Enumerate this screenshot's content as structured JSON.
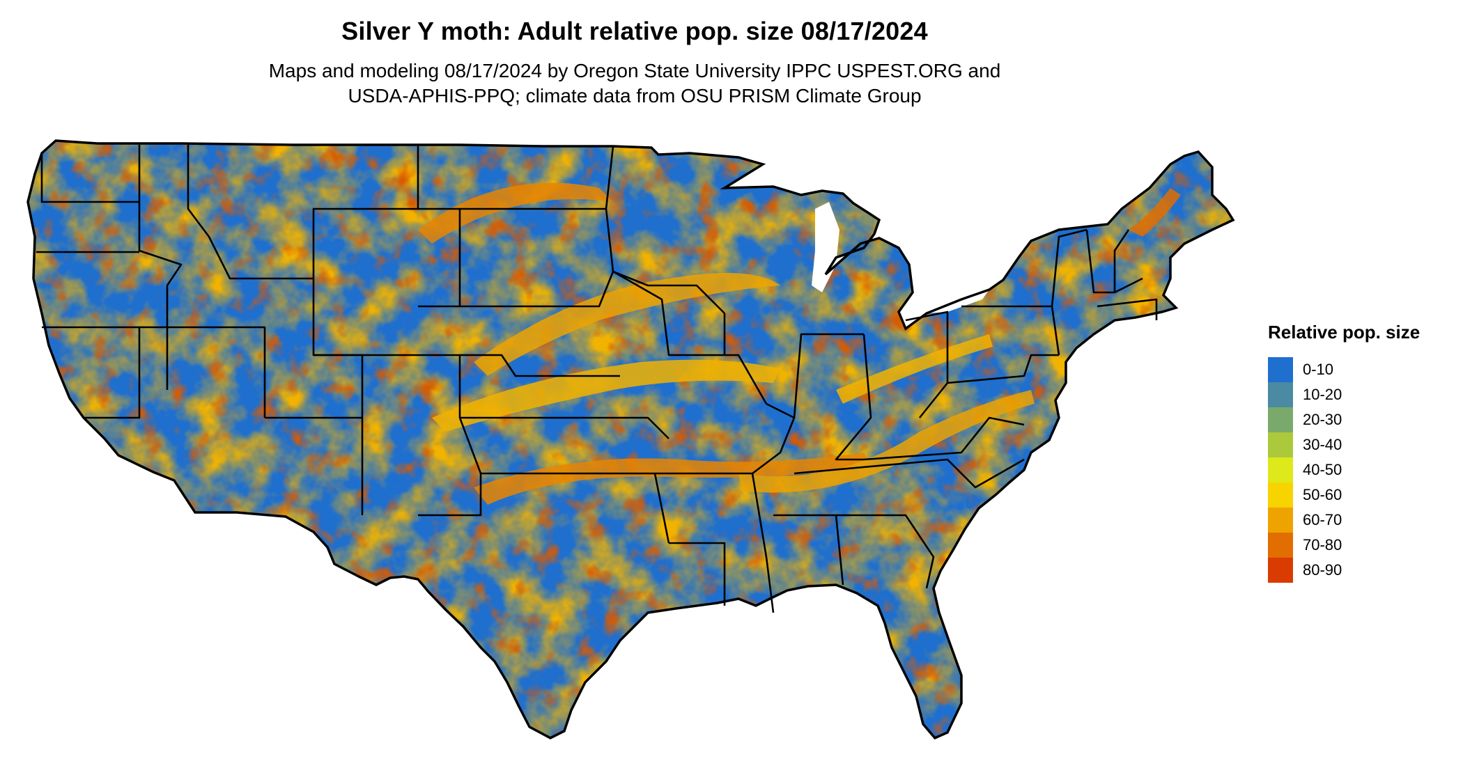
{
  "title": "Silver Y moth: Adult relative pop. size 08/17/2024",
  "subtitle_line1": "Maps and modeling 08/17/2024 by Oregon State University IPPC USPEST.ORG and",
  "subtitle_line2": "USDA-APHIS-PPQ; climate data from OSU PRISM Climate Group",
  "legend": {
    "title": "Relative pop. size",
    "items": [
      {
        "label": "0-10",
        "color": "#1f6fce"
      },
      {
        "label": "10-20",
        "color": "#4a8aa2"
      },
      {
        "label": "20-30",
        "color": "#79aa6c"
      },
      {
        "label": "30-40",
        "color": "#abc93b"
      },
      {
        "label": "40-50",
        "color": "#dde91a"
      },
      {
        "label": "50-60",
        "color": "#f7d300"
      },
      {
        "label": "60-70",
        "color": "#eea300"
      },
      {
        "label": "70-80",
        "color": "#e26d00"
      },
      {
        "label": "80-90",
        "color": "#d93b00"
      }
    ]
  }
}
